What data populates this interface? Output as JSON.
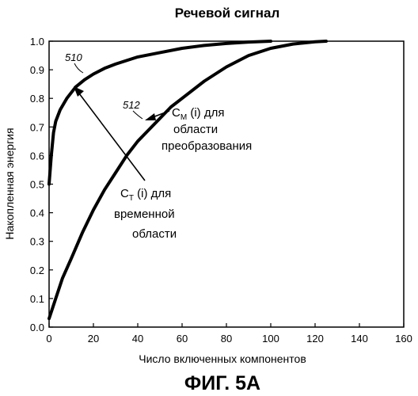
{
  "chart_data": {
    "type": "line",
    "title": "Речевой сигнал",
    "xlabel": "Число включенных компонентов",
    "ylabel": "Накопленная энергия",
    "xlim": [
      0,
      160
    ],
    "ylim": [
      0,
      1.0
    ],
    "xticks": [
      "0",
      "20",
      "40",
      "60",
      "80",
      "100",
      "120",
      "140",
      "160"
    ],
    "yticks": [
      "0.0",
      "0.1",
      "0.2",
      "0.3",
      "0.4",
      "0.5",
      "0.6",
      "0.7",
      "0.8",
      "0.9",
      "1.0"
    ],
    "grid": false,
    "series": [
      {
        "ref": "510",
        "x": [
          0,
          1,
          2,
          3,
          5,
          8,
          12,
          16,
          20,
          25,
          30,
          40,
          50,
          60,
          70,
          80,
          90,
          100
        ],
        "y": [
          0.5,
          0.6,
          0.68,
          0.72,
          0.76,
          0.8,
          0.84,
          0.865,
          0.885,
          0.905,
          0.92,
          0.945,
          0.96,
          0.975,
          0.985,
          0.992,
          0.997,
          1.0
        ]
      },
      {
        "ref": "512",
        "x": [
          0,
          3,
          6,
          10,
          15,
          20,
          25,
          30,
          35,
          40,
          45,
          50,
          55,
          60,
          70,
          80,
          90,
          100,
          110,
          120,
          125
        ],
        "y": [
          0.03,
          0.1,
          0.17,
          0.24,
          0.33,
          0.41,
          0.48,
          0.54,
          0.6,
          0.65,
          0.69,
          0.73,
          0.77,
          0.8,
          0.86,
          0.91,
          0.95,
          0.975,
          0.99,
          0.998,
          1.0
        ]
      }
    ],
    "annotations": {
      "cm_line1": "С",
      "cm_sub": "M",
      "cm_rest": " (i) для",
      "cm_line2": "области",
      "cm_line3": "преобразования",
      "ct_line1": "С",
      "ct_sub": "T",
      "ct_rest": " (i) для",
      "ct_line2": "временной",
      "ct_line3": "области"
    }
  },
  "figure_label": "ФИГ. 5А"
}
